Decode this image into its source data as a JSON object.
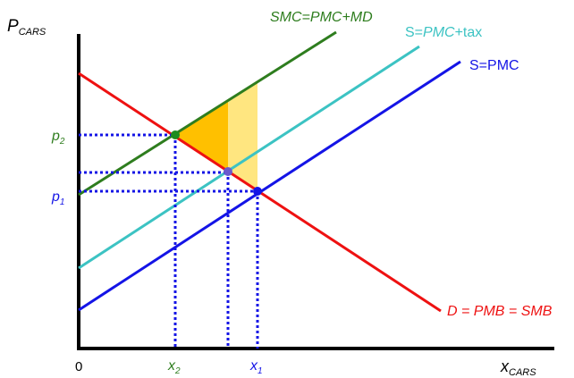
{
  "diagram": {
    "y_axis_label": {
      "main": "P",
      "sub": "CARS"
    },
    "x_axis_label": {
      "main": "x",
      "sub": "CARS"
    },
    "origin_label": "0",
    "curves": {
      "smc": {
        "label": "SMC=PMC+MD",
        "color": "#2e7d1e"
      },
      "s_tax": {
        "label_plain_1": "S=",
        "label_italic": "PMC",
        "label_plain_2": "+tax",
        "color": "#3cc3c3"
      },
      "s_pmc": {
        "label": "S=PMC",
        "color": "#1414e6"
      },
      "demand": {
        "label": "D = PMB = SMB",
        "color": "#ee1111"
      }
    },
    "price_labels": {
      "p2": {
        "main": "p",
        "sub": "2",
        "color": "#2e7d1e"
      },
      "p1": {
        "main": "p",
        "sub": "1",
        "color": "#1414e6"
      }
    },
    "quantity_labels": {
      "x2": {
        "main": "x",
        "sub": "2",
        "color": "#2e7d1e"
      },
      "x1": {
        "main": "x",
        "sub": "1",
        "color": "#1414e6"
      }
    },
    "colors": {
      "guide": "#1414e6",
      "axis": "#000000",
      "dwl_dark": "#ffc000",
      "dwl_light": "#ffe680",
      "point_green": "#1e8c1e",
      "point_purple": "#6a5acd",
      "point_blue": "#1414e6"
    }
  }
}
